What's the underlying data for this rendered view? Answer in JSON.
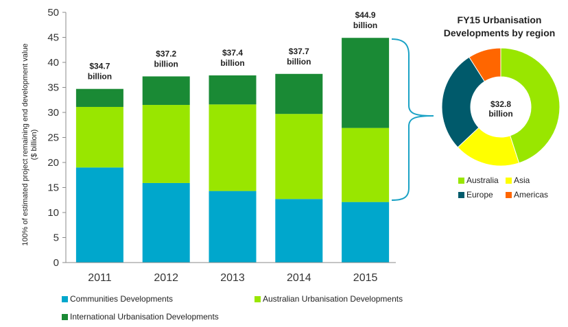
{
  "chart_data": [
    {
      "type": "bar",
      "stacked": true,
      "categories": [
        "2011",
        "2012",
        "2013",
        "2014",
        "2015"
      ],
      "series": [
        {
          "name": "Communities Developments",
          "color": "#00a7cc",
          "values": [
            19.0,
            15.9,
            14.3,
            12.7,
            12.1
          ]
        },
        {
          "name": "Australian Urbanisation Developments",
          "color": "#99e600",
          "values": [
            12.1,
            15.6,
            17.3,
            17.0,
            14.8
          ]
        },
        {
          "name": "International Urbanisation Developments",
          "color": "#1a8a35",
          "values": [
            3.6,
            5.7,
            5.8,
            8.0,
            18.0
          ]
        }
      ],
      "totals": [
        {
          "line1": "$34.7",
          "line2": "billion"
        },
        {
          "line1": "$37.2",
          "line2": "billion"
        },
        {
          "line1": "$37.4",
          "line2": "billion"
        },
        {
          "line1": "$37.7",
          "line2": "billion"
        },
        {
          "line1": "$44.9",
          "line2": "billion"
        }
      ],
      "ylabel": [
        "100% of estimated project remaining end development value",
        "($ billion)"
      ],
      "ylim": [
        0,
        50
      ],
      "yticks": [
        0,
        5,
        10,
        15,
        20,
        25,
        30,
        35,
        40,
        45,
        50
      ],
      "grid": false,
      "legend": "bottom"
    },
    {
      "type": "pie",
      "title": [
        "FY15 Urbanisation",
        "Developments by region"
      ],
      "center_label": [
        "$32.8",
        "billion"
      ],
      "slices": [
        {
          "name": "Australia",
          "color": "#99e600",
          "value": 45
        },
        {
          "name": "Asia",
          "color": "#ffff00",
          "value": 18
        },
        {
          "name": "Europe",
          "color": "#005a6b",
          "value": 28
        },
        {
          "name": "Americas",
          "color": "#ff6600",
          "value": 9
        }
      ],
      "legend": "bottom"
    }
  ]
}
